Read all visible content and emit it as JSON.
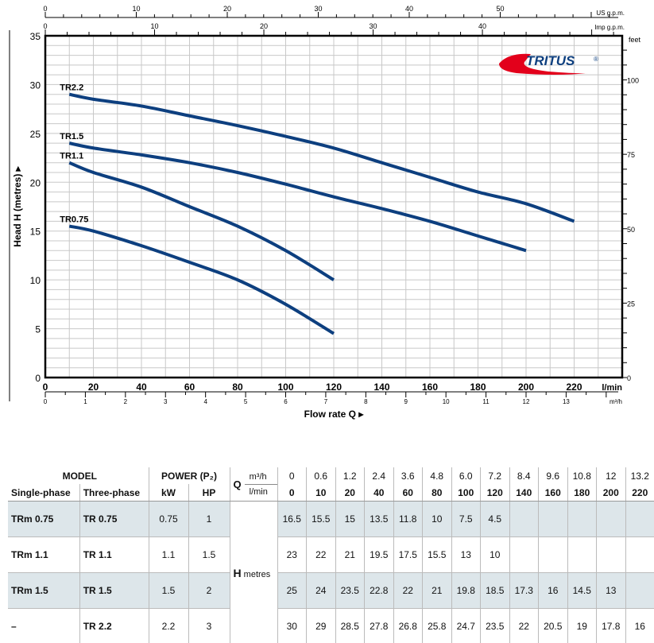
{
  "chart_data": {
    "type": "line",
    "title": "",
    "brand": "TRITUS",
    "brand_mark": "®",
    "xlabel": "Flow rate Q",
    "ylabel": "Head H  (metres)",
    "xlim": [
      0,
      240
    ],
    "ylim": [
      0,
      35
    ],
    "x_unit": "l/min",
    "x_ticks": [
      0,
      20,
      40,
      60,
      80,
      100,
      120,
      140,
      160,
      180,
      200,
      220
    ],
    "y_ticks": [
      0,
      5,
      10,
      15,
      20,
      25,
      30,
      35
    ],
    "grid": true,
    "secondary_axes": {
      "us_gpm": {
        "label": "US g.p.m.",
        "ticks": [
          0,
          10,
          20,
          30,
          40,
          50
        ]
      },
      "imp_gpm": {
        "label": "Imp g.p.m.",
        "ticks": [
          0,
          10,
          20,
          30,
          40
        ]
      },
      "m3h": {
        "label": "m³/h",
        "ticks": [
          0,
          1,
          2,
          3,
          4,
          5,
          6,
          7,
          8,
          9,
          10,
          11,
          12,
          13
        ]
      },
      "feet": {
        "label": "feet",
        "ticks": [
          0,
          25,
          50,
          75,
          100
        ]
      }
    },
    "series": [
      {
        "name": "TR2.2",
        "x": [
          10,
          20,
          40,
          60,
          80,
          100,
          120,
          140,
          160,
          180,
          200,
          220
        ],
        "y": [
          29,
          28.5,
          27.8,
          26.8,
          25.8,
          24.7,
          23.5,
          22,
          20.5,
          19,
          17.8,
          16
        ]
      },
      {
        "name": "TR1.5",
        "x": [
          10,
          20,
          40,
          60,
          80,
          100,
          120,
          140,
          160,
          180,
          200
        ],
        "y": [
          24,
          23.5,
          22.8,
          22,
          21,
          19.8,
          18.5,
          17.3,
          16,
          14.5,
          13
        ]
      },
      {
        "name": "TR1.1",
        "x": [
          10,
          20,
          40,
          60,
          80,
          100,
          120
        ],
        "y": [
          22,
          21,
          19.5,
          17.5,
          15.5,
          13,
          10
        ]
      },
      {
        "name": "TR0.75",
        "x": [
          10,
          20,
          40,
          60,
          80,
          100,
          120
        ],
        "y": [
          15.5,
          15,
          13.5,
          11.8,
          10,
          7.5,
          4.5
        ]
      }
    ],
    "line_color": "#0d3f7f"
  },
  "table": {
    "model_label": "MODEL",
    "power_label": "POWER (P₂)",
    "single_label": "Single-phase",
    "three_label": "Three-phase",
    "kw_label": "kW",
    "hp_label": "HP",
    "q_label": "Q",
    "m3h_unit": "m³/h",
    "lmin_unit": "l/min",
    "h_label": "H",
    "h_unit": "metres",
    "m3h": [
      "0",
      "0.6",
      "1.2",
      "2.4",
      "3.6",
      "4.8",
      "6.0",
      "7.2",
      "8.4",
      "9.6",
      "10.8",
      "12",
      "13.2"
    ],
    "lmin": [
      "0",
      "10",
      "20",
      "40",
      "60",
      "80",
      "100",
      "120",
      "140",
      "160",
      "180",
      "200",
      "220"
    ],
    "rows": [
      {
        "single": "TRm 0.75",
        "three": "TR 0.75",
        "kw": "0.75",
        "hp": "1",
        "h": [
          "16.5",
          "15.5",
          "15",
          "13.5",
          "11.8",
          "10",
          "7.5",
          "4.5",
          "",
          "",
          "",
          "",
          ""
        ]
      },
      {
        "single": "TRm 1.1",
        "three": "TR 1.1",
        "kw": "1.1",
        "hp": "1.5",
        "h": [
          "23",
          "22",
          "21",
          "19.5",
          "17.5",
          "15.5",
          "13",
          "10",
          "",
          "",
          "",
          "",
          ""
        ]
      },
      {
        "single": "TRm 1.5",
        "three": "TR 1.5",
        "kw": "1.5",
        "hp": "2",
        "h": [
          "25",
          "24",
          "23.5",
          "22.8",
          "22",
          "21",
          "19.8",
          "18.5",
          "17.3",
          "16",
          "14.5",
          "13",
          ""
        ]
      },
      {
        "single": "–",
        "three": "TR 2.2",
        "kw": "2.2",
        "hp": "3",
        "h": [
          "30",
          "29",
          "28.5",
          "27.8",
          "26.8",
          "25.8",
          "24.7",
          "23.5",
          "22",
          "20.5",
          "19",
          "17.8",
          "16"
        ]
      }
    ]
  }
}
